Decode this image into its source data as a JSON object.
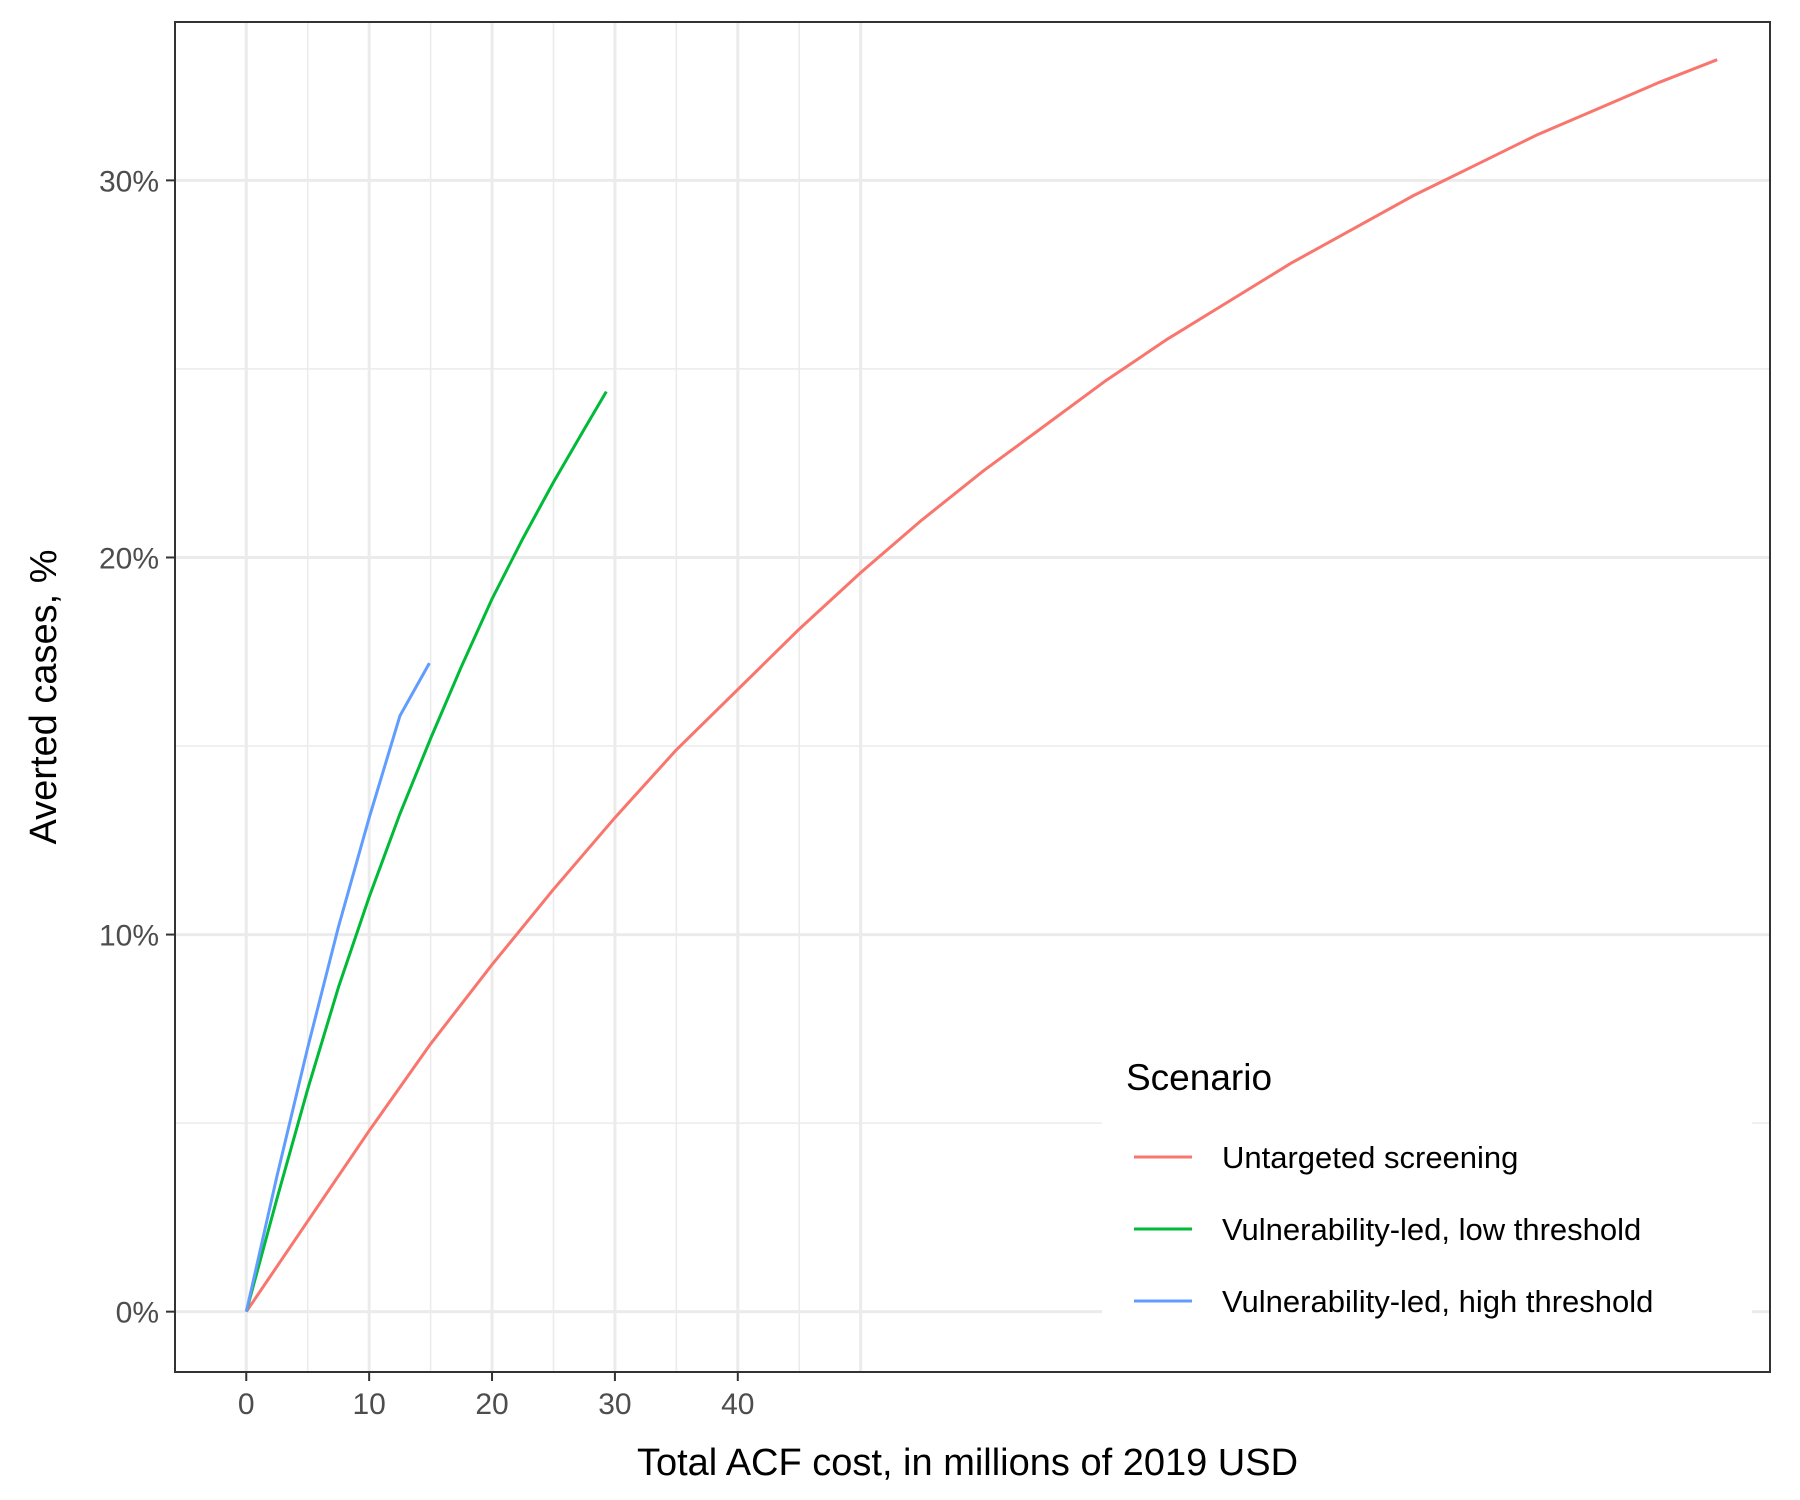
{
  "chart_data": {
    "type": "line",
    "title": "",
    "xlabel": "Total ACF cost, in millions of 2019 USD",
    "ylabel": "Averted cases, %",
    "xlim": [
      -5.8,
      124
    ],
    "ylim": [
      -1.6,
      34.2
    ],
    "x_ticks": [
      0,
      10,
      20,
      30,
      40
    ],
    "x_tick_labels": [
      "0",
      "10",
      "20",
      "30",
      "40"
    ],
    "x_minor_gridlines": [
      5,
      15,
      25,
      35,
      45
    ],
    "x_extra_gridlines": [
      50
    ],
    "y_ticks": [
      0,
      10,
      20,
      30
    ],
    "y_tick_labels": [
      "0%",
      "10%",
      "20%",
      "30%"
    ],
    "y_minor_gridlines": [
      5,
      15,
      25
    ],
    "grid": true,
    "legend": {
      "title": "Scenario",
      "position": "bottom-right"
    },
    "series": [
      {
        "name": "Untargeted screening",
        "color": "#F8766D",
        "x": [
          0,
          5,
          10,
          15,
          20,
          25,
          30,
          35,
          40,
          45,
          50,
          55,
          60,
          65,
          70,
          75,
          80,
          85,
          90,
          95,
          100,
          105,
          110,
          115,
          119.7
        ],
        "y": [
          0,
          2.4,
          4.8,
          7.1,
          9.2,
          11.2,
          13.1,
          14.9,
          16.5,
          18.1,
          19.6,
          21.0,
          22.3,
          23.5,
          24.7,
          25.8,
          26.8,
          27.8,
          28.7,
          29.6,
          30.4,
          31.2,
          31.9,
          32.6,
          33.2
        ]
      },
      {
        "name": "Vulnerability-led, low threshold",
        "color": "#00BA38",
        "x": [
          0,
          2.5,
          5,
          7.5,
          10,
          12.5,
          15,
          17.5,
          20,
          22.5,
          25,
          27.5,
          29.3
        ],
        "y": [
          0,
          3.0,
          5.9,
          8.6,
          11.0,
          13.2,
          15.2,
          17.1,
          18.9,
          20.5,
          22.0,
          23.4,
          24.4
        ]
      },
      {
        "name": "Vulnerability-led, high threshold",
        "color": "#619CFF",
        "x": [
          0,
          2.5,
          5,
          7.5,
          10,
          12.5,
          14.9
        ],
        "y": [
          0,
          3.6,
          7.0,
          10.2,
          13.1,
          15.8,
          17.2
        ]
      }
    ]
  }
}
